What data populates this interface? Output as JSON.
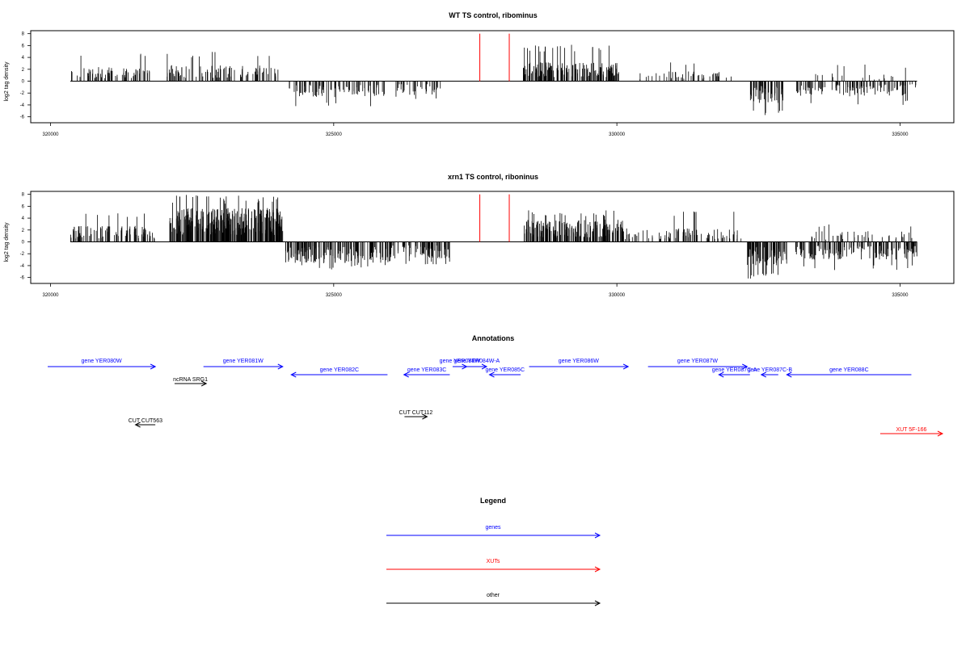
{
  "colors": {
    "gene": "#0000ff",
    "xut": "#ff0000",
    "other": "#000000",
    "marker": "#ff0000",
    "bars": "#000000"
  },
  "panels": [
    {
      "title": "WT TS control, ribominus",
      "ylabel": "log2 tag density",
      "yticks": [
        "8",
        "6",
        "4",
        "2",
        "0",
        "-2",
        "-4",
        "-6"
      ],
      "xticks": [
        "320000",
        "325000",
        "330000",
        "335000"
      ]
    },
    {
      "title": "xrn1 TS control, riboninus",
      "ylabel": "log2 tag density",
      "yticks": [
        "8",
        "6",
        "4",
        "2",
        "0",
        "-2",
        "-4",
        "-6"
      ],
      "xticks": [
        "320000",
        "325000",
        "330000",
        "335000"
      ]
    }
  ],
  "annotations": {
    "title": "Annotations",
    "items": [
      {
        "label": "gene YER080W",
        "type": "gene",
        "start": 319950,
        "end": 321850,
        "strand": "+",
        "row": 0
      },
      {
        "label": "gene YER081W",
        "type": "gene",
        "start": 322700,
        "end": 324100,
        "strand": "+",
        "row": 0
      },
      {
        "label": "gene YER082C",
        "type": "gene",
        "start": 324250,
        "end": 325950,
        "strand": "-",
        "row": 1
      },
      {
        "label": "gene YER083C",
        "type": "gene",
        "start": 326240,
        "end": 327050,
        "strand": "-",
        "row": 1
      },
      {
        "label": "gene YER084W",
        "type": "gene",
        "start": 327100,
        "end": 327350,
        "strand": "+",
        "row": 0
      },
      {
        "label": "gene YER084W-A",
        "type": "gene",
        "start": 327350,
        "end": 327700,
        "strand": "+",
        "row": 0
      },
      {
        "label": "gene YER085C",
        "type": "gene",
        "start": 327750,
        "end": 328300,
        "strand": "-",
        "row": 1
      },
      {
        "label": "gene YER086W",
        "type": "gene",
        "start": 328450,
        "end": 330200,
        "strand": "+",
        "row": 0
      },
      {
        "label": "gene YER087W",
        "type": "gene",
        "start": 330550,
        "end": 332300,
        "strand": "+",
        "row": 0
      },
      {
        "label": "gene YER087C-A",
        "type": "gene",
        "start": 331800,
        "end": 332350,
        "strand": "-",
        "row": 1
      },
      {
        "label": "gene YER087C-B",
        "type": "gene",
        "start": 332550,
        "end": 332850,
        "strand": "-",
        "row": 1
      },
      {
        "label": "gene YER088C",
        "type": "gene",
        "start": 333000,
        "end": 335200,
        "strand": "-",
        "row": 1
      },
      {
        "label": "ncRNA SRG1",
        "type": "other",
        "start": 322190,
        "end": 322750,
        "strand": "+",
        "row": 2
      },
      {
        "label": "CUT CUT563",
        "type": "other",
        "start": 321500,
        "end": 321850,
        "strand": "-",
        "row": 3
      },
      {
        "label": "CUT CUT112",
        "type": "other",
        "start": 326250,
        "end": 326650,
        "strand": "+",
        "row": 4
      },
      {
        "label": "XUT 5F-166",
        "type": "xut",
        "start": 334650,
        "end": 335750,
        "strand": "+",
        "row": 5
      }
    ]
  },
  "legend": {
    "title": "Legend",
    "items": [
      {
        "label": "genes",
        "type": "gene"
      },
      {
        "label": "XUTs",
        "type": "xut"
      },
      {
        "label": "other",
        "type": "other"
      }
    ]
  },
  "chart_data": [
    {
      "type": "bar",
      "title": "WT TS control, ribominus",
      "ylabel": "log2 tag density",
      "xlim": [
        319650,
        335950
      ],
      "ylim": [
        -7,
        8.5
      ],
      "xticks": [
        320000,
        325000,
        330000,
        335000
      ],
      "yticks": [
        8,
        6,
        4,
        2,
        0,
        -2,
        -4,
        -6
      ],
      "markers": [
        327580,
        328100
      ],
      "regions": [
        {
          "start": 320350,
          "end": 321750,
          "sign": 1,
          "mean": 1.6,
          "max": 5.0,
          "n": 70
        },
        {
          "start": 322050,
          "end": 324050,
          "sign": 1,
          "mean": 1.8,
          "max": 5.0,
          "n": 95
        },
        {
          "start": 324200,
          "end": 325900,
          "sign": -1,
          "mean": 1.8,
          "max": 4.3,
          "n": 80
        },
        {
          "start": 326100,
          "end": 326900,
          "sign": -1,
          "mean": 1.6,
          "max": 3.2,
          "n": 35
        },
        {
          "start": 328320,
          "end": 330050,
          "sign": 1,
          "mean": 2.1,
          "max": 6.2,
          "n": 170
        },
        {
          "start": 330400,
          "end": 332100,
          "sign": 1,
          "mean": 1.1,
          "max": 3.2,
          "n": 45
        },
        {
          "start": 332350,
          "end": 332950,
          "sign": -1,
          "mean": 2.5,
          "max": 6.0,
          "n": 55
        },
        {
          "start": 333150,
          "end": 335300,
          "sign": -1,
          "mean": 1.7,
          "max": 4.0,
          "n": 110
        },
        {
          "start": 333350,
          "end": 335100,
          "sign": 1,
          "mean": 0.9,
          "max": 2.8,
          "n": 18
        }
      ]
    },
    {
      "type": "bar",
      "title": "xrn1 TS control, riboninus",
      "ylabel": "log2 tag density",
      "xlim": [
        319650,
        335950
      ],
      "ylim": [
        -7,
        8.5
      ],
      "xticks": [
        320000,
        325000,
        330000,
        335000
      ],
      "yticks": [
        8,
        6,
        4,
        2,
        0,
        -2,
        -4,
        -6
      ],
      "markers": [
        327580,
        328100
      ],
      "regions": [
        {
          "start": 320350,
          "end": 321850,
          "sign": 1,
          "mean": 1.8,
          "max": 5.0,
          "n": 85
        },
        {
          "start": 322100,
          "end": 324100,
          "sign": 1,
          "mean": 3.8,
          "max": 8.0,
          "n": 320
        },
        {
          "start": 324150,
          "end": 326000,
          "sign": -1,
          "mean": 2.4,
          "max": 4.8,
          "n": 160
        },
        {
          "start": 326000,
          "end": 327050,
          "sign": -1,
          "mean": 1.9,
          "max": 4.0,
          "n": 75
        },
        {
          "start": 328350,
          "end": 330100,
          "sign": 1,
          "mean": 2.5,
          "max": 5.4,
          "n": 190
        },
        {
          "start": 330100,
          "end": 332200,
          "sign": 1,
          "mean": 1.5,
          "max": 5.3,
          "n": 85
        },
        {
          "start": 332300,
          "end": 333000,
          "sign": -1,
          "mean": 2.7,
          "max": 6.2,
          "n": 85
        },
        {
          "start": 333150,
          "end": 335300,
          "sign": -1,
          "mean": 2.0,
          "max": 4.8,
          "n": 150
        },
        {
          "start": 333300,
          "end": 335300,
          "sign": 1,
          "mean": 1.2,
          "max": 3.0,
          "n": 40
        }
      ]
    }
  ]
}
